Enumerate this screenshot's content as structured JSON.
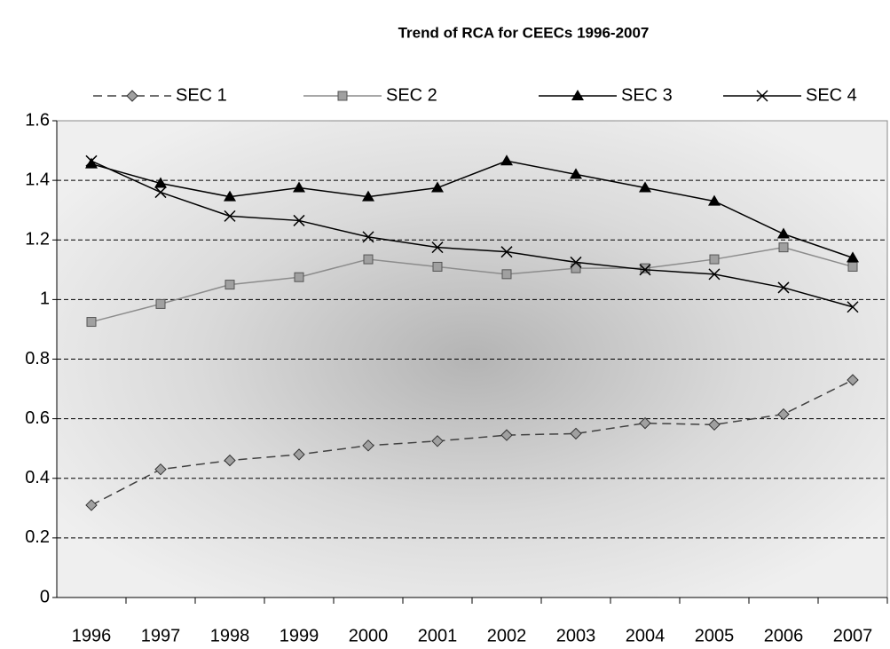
{
  "chart_data": {
    "type": "line",
    "title": "Trend of RCA for CEECs 1996-2007",
    "categories": [
      "1996",
      "1997",
      "1998",
      "1999",
      "2000",
      "2001",
      "2002",
      "2003",
      "2004",
      "2005",
      "2006",
      "2007"
    ],
    "series": [
      {
        "name": "SEC 1",
        "color": "#404040",
        "marker": "diamond",
        "dash": true,
        "values": [
          0.31,
          0.43,
          0.46,
          0.48,
          0.51,
          0.525,
          0.545,
          0.55,
          0.585,
          0.58,
          0.615,
          0.73
        ]
      },
      {
        "name": "SEC 2",
        "color": "#8c8c8c",
        "marker": "square",
        "dash": false,
        "values": [
          0.925,
          0.985,
          1.05,
          1.075,
          1.135,
          1.11,
          1.085,
          1.105,
          1.105,
          1.135,
          1.175,
          1.11
        ]
      },
      {
        "name": "SEC 3",
        "color": "#000000",
        "marker": "triangle",
        "dash": false,
        "values": [
          1.455,
          1.39,
          1.345,
          1.375,
          1.345,
          1.375,
          1.465,
          1.42,
          1.375,
          1.33,
          1.22,
          1.14
        ]
      },
      {
        "name": "SEC 4",
        "color": "#000000",
        "marker": "x",
        "dash": false,
        "values": [
          1.465,
          1.36,
          1.28,
          1.265,
          1.21,
          1.175,
          1.16,
          1.125,
          1.1,
          1.085,
          1.04,
          0.975
        ]
      }
    ],
    "ylim": [
      0,
      1.6
    ],
    "yticks": [
      0,
      0.2,
      0.4,
      0.6,
      0.8,
      1,
      1.2,
      1.4,
      1.6
    ],
    "grid": true,
    "legend": "top"
  }
}
